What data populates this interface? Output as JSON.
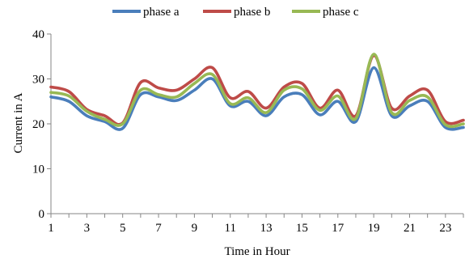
{
  "chart_data": {
    "type": "line",
    "title": "",
    "xlabel": "Time in Hour",
    "ylabel": "Current in A",
    "xlim": [
      1,
      24
    ],
    "ylim": [
      0,
      40
    ],
    "x": [
      1,
      2,
      3,
      4,
      5,
      6,
      7,
      8,
      9,
      10,
      11,
      12,
      13,
      14,
      15,
      16,
      17,
      18,
      19,
      20,
      21,
      22,
      23,
      24
    ],
    "xticks": [
      1,
      3,
      5,
      7,
      9,
      11,
      13,
      15,
      17,
      19,
      21,
      23
    ],
    "xtick_labels": [
      "1",
      "3",
      "5",
      "7",
      "9",
      "11",
      "13",
      "15",
      "17",
      "19",
      "21",
      "23"
    ],
    "yticks": [
      0,
      10,
      20,
      30,
      40
    ],
    "ytick_labels": [
      "0",
      "10",
      "20",
      "30",
      "40"
    ],
    "grid": false,
    "legend_position": "top",
    "series": [
      {
        "name": "phase a",
        "color": "#4a7ebb",
        "values": [
          26.0,
          25.0,
          21.8,
          20.5,
          19.0,
          26.5,
          26.0,
          25.2,
          27.5,
          30.0,
          24.0,
          25.0,
          21.8,
          26.0,
          26.5,
          22.0,
          25.0,
          20.5,
          32.5,
          21.8,
          24.0,
          25.0,
          19.2,
          19.2
        ]
      },
      {
        "name": "phase b",
        "color": "#be4b48",
        "values": [
          28.2,
          27.2,
          23.2,
          21.8,
          20.2,
          29.2,
          28.0,
          27.5,
          30.0,
          32.5,
          25.8,
          27.2,
          23.5,
          28.2,
          29.0,
          23.5,
          27.5,
          21.8,
          35.2,
          23.5,
          26.2,
          27.5,
          20.5,
          20.8
        ]
      },
      {
        "name": "phase c",
        "color": "#98b954",
        "values": [
          27.0,
          26.2,
          22.8,
          21.0,
          20.0,
          27.5,
          26.5,
          26.0,
          29.0,
          31.0,
          24.5,
          25.8,
          22.5,
          27.5,
          27.8,
          23.0,
          26.2,
          21.2,
          35.5,
          22.5,
          25.2,
          26.0,
          19.8,
          20.0
        ]
      }
    ]
  }
}
